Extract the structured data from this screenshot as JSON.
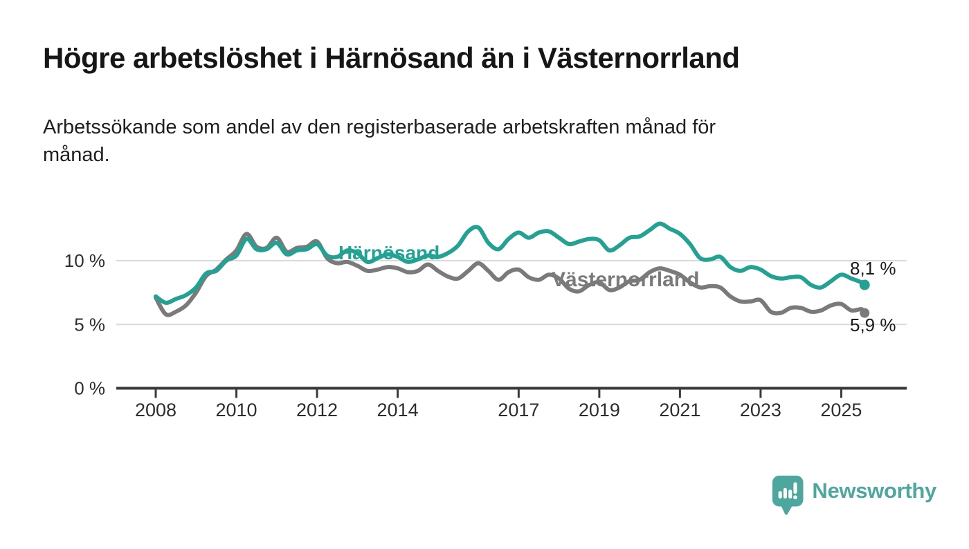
{
  "header": {
    "title": "Högre arbetslöshet i Härnösand än i Västernorrland",
    "subtitle_lines": [
      "Arbetssökande som andel av den registerbaserade arbetskraften månad för",
      "månad."
    ]
  },
  "chart_data": {
    "type": "line",
    "title": "Arbetssökande som andel av den registerbaserade arbetskraften månad för månad",
    "xlabel": "",
    "ylabel": "",
    "unit": "%",
    "grid": "horizontal",
    "legend_position": "inline-labels",
    "xlim": [
      2007.0,
      2026.6
    ],
    "ylim": [
      0,
      13.6
    ],
    "y_ticks": [
      {
        "value": 0,
        "label": "0 %"
      },
      {
        "value": 5,
        "label": "5 %"
      },
      {
        "value": 10,
        "label": "10 %"
      }
    ],
    "x_ticks": [
      {
        "year": 2008,
        "label": "2008"
      },
      {
        "year": 2010,
        "label": "2010"
      },
      {
        "year": 2012,
        "label": "2012"
      },
      {
        "year": 2014,
        "label": "2014"
      },
      {
        "year": 2017,
        "label": "2017"
      },
      {
        "year": 2019,
        "label": "2019"
      },
      {
        "year": 2021,
        "label": "2021"
      },
      {
        "year": 2023,
        "label": "2023"
      },
      {
        "year": 2025,
        "label": "2025"
      }
    ],
    "x": [
      2008.0,
      2008.25,
      2008.5,
      2008.75,
      2009.0,
      2009.25,
      2009.5,
      2009.75,
      2010.0,
      2010.25,
      2010.5,
      2010.75,
      2011.0,
      2011.25,
      2011.5,
      2011.75,
      2012.0,
      2012.25,
      2012.5,
      2012.75,
      2013.0,
      2013.25,
      2013.5,
      2013.75,
      2014.0,
      2014.25,
      2014.5,
      2014.75,
      2015.0,
      2015.25,
      2015.5,
      2015.75,
      2016.0,
      2016.25,
      2016.5,
      2016.75,
      2017.0,
      2017.25,
      2017.5,
      2017.75,
      2018.0,
      2018.25,
      2018.5,
      2018.75,
      2019.0,
      2019.25,
      2019.5,
      2019.75,
      2020.0,
      2020.25,
      2020.5,
      2020.75,
      2021.0,
      2021.25,
      2021.5,
      2021.75,
      2022.0,
      2022.25,
      2022.5,
      2022.75,
      2023.0,
      2023.25,
      2023.5,
      2023.75,
      2024.0,
      2024.25,
      2024.5,
      2024.75,
      2025.0,
      2025.25,
      2025.5,
      2025.58
    ],
    "series": [
      {
        "name": "Härnösand",
        "color": "#23a294",
        "end_label": "8,1 %",
        "end_value": 8.1,
        "values": [
          7.2,
          6.7,
          7.0,
          7.3,
          7.9,
          9.0,
          9.2,
          10.0,
          10.4,
          11.7,
          10.9,
          10.9,
          11.4,
          10.5,
          10.8,
          10.9,
          11.3,
          10.4,
          10.3,
          10.8,
          10.6,
          9.9,
          10.2,
          10.5,
          10.3,
          9.9,
          10.1,
          10.4,
          10.3,
          10.6,
          11.2,
          12.3,
          12.6,
          11.4,
          10.9,
          11.7,
          12.2,
          11.8,
          12.2,
          12.3,
          11.8,
          11.3,
          11.5,
          11.7,
          11.6,
          10.8,
          11.2,
          11.8,
          11.9,
          12.4,
          12.9,
          12.5,
          12.1,
          11.3,
          10.2,
          10.1,
          10.3,
          9.5,
          9.2,
          9.5,
          9.3,
          8.8,
          8.6,
          8.7,
          8.7,
          8.1,
          7.9,
          8.4,
          8.9,
          8.6,
          8.3,
          8.1
        ]
      },
      {
        "name": "Västernorrland",
        "color": "#7a7a7a",
        "end_label": "5,9 %",
        "end_value": 5.9,
        "values": [
          7.1,
          5.8,
          6.0,
          6.5,
          7.5,
          8.8,
          9.3,
          10.1,
          10.8,
          12.1,
          11.1,
          11.0,
          11.8,
          10.7,
          11.0,
          11.1,
          11.5,
          10.2,
          9.8,
          9.9,
          9.6,
          9.2,
          9.3,
          9.5,
          9.4,
          9.1,
          9.2,
          9.7,
          9.2,
          8.75,
          8.6,
          9.2,
          9.8,
          9.2,
          8.5,
          9.1,
          9.3,
          8.7,
          8.5,
          8.9,
          8.6,
          7.8,
          7.6,
          8.1,
          8.3,
          7.7,
          7.9,
          8.4,
          8.5,
          9.1,
          9.4,
          9.2,
          8.9,
          8.3,
          7.9,
          8.0,
          7.9,
          7.2,
          6.8,
          6.8,
          6.9,
          6.0,
          5.9,
          6.3,
          6.3,
          6.0,
          6.1,
          6.5,
          6.6,
          6.1,
          6.2,
          5.9
        ]
      }
    ]
  },
  "footer": {
    "brand": "Newsworthy",
    "brand_color": "#4ea79f",
    "logo_icon": "bar-chart-speech-bubble"
  },
  "colors": {
    "background": "#ffffff",
    "axis": "#3a3a3a",
    "gridline": "#d9d9d9",
    "tick_label": "#2d2d2d",
    "value_label": "#1a1a1a"
  }
}
